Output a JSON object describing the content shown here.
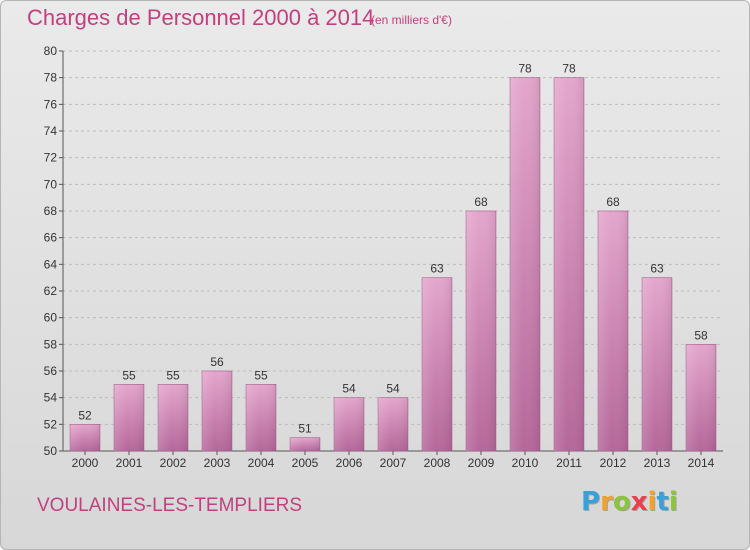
{
  "title": "Charges de Personnel 2000 à 2014",
  "subtitle": "(en milliers d'€)",
  "commune": "VOULAINES-LES-TEMPLIERS",
  "logo": {
    "letters": [
      "P",
      "r",
      "o",
      "x",
      "i",
      "t",
      "i"
    ],
    "colors": [
      "#3aa0d8",
      "#f0a32a",
      "#8bc53f",
      "#e8424e",
      "#f0a32a",
      "#3aa0d8",
      "#8bc53f"
    ]
  },
  "colors": {
    "accent": "#c2407f",
    "bar_top": "#e4a6cc",
    "bar_bottom": "#b5679a",
    "axis": "#555555",
    "grid": "#bdbdbd"
  },
  "chart_data": {
    "type": "bar",
    "categories": [
      "2000",
      "2001",
      "2002",
      "2003",
      "2004",
      "2005",
      "2006",
      "2007",
      "2008",
      "2009",
      "2010",
      "2011",
      "2012",
      "2013",
      "2014"
    ],
    "values": [
      52,
      55,
      55,
      56,
      55,
      51,
      54,
      54,
      63,
      68,
      78,
      78,
      68,
      63,
      58
    ],
    "ylim": [
      50,
      80
    ],
    "yticks": [
      50,
      52,
      54,
      56,
      58,
      60,
      62,
      64,
      66,
      68,
      70,
      72,
      74,
      76,
      78,
      80
    ],
    "grid": true,
    "data_labels": true
  }
}
